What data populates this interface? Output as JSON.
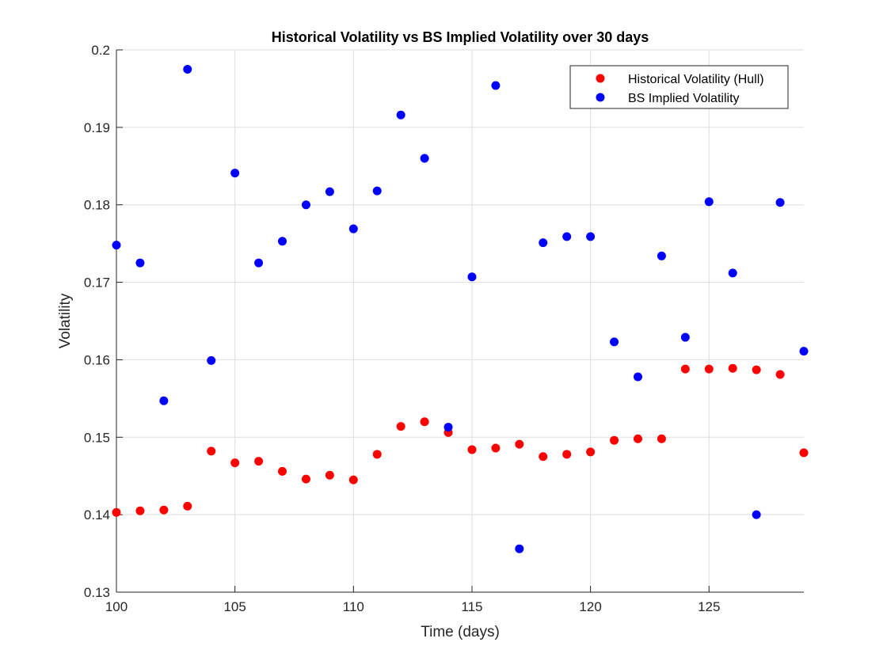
{
  "chart_data": {
    "type": "scatter",
    "title": "Historical Volatility vs BS Implied Volatility over 30 days",
    "xlabel": "Time (days)",
    "ylabel": "Volatility",
    "xlim": [
      100,
      129
    ],
    "ylim": [
      0.13,
      0.2
    ],
    "xticks": [
      100,
      105,
      110,
      115,
      120,
      125
    ],
    "yticks": [
      0.13,
      0.14,
      0.15,
      0.16,
      0.17,
      0.18,
      0.19,
      0.2
    ],
    "xtick_labels": [
      "100",
      "105",
      "110",
      "115",
      "120",
      "125"
    ],
    "ytick_labels": [
      "0.13",
      "0.14",
      "0.15",
      "0.16",
      "0.17",
      "0.18",
      "0.19",
      "0.2"
    ],
    "grid": true,
    "legend_position": "top-right",
    "x": [
      100,
      101,
      102,
      103,
      104,
      105,
      106,
      107,
      108,
      109,
      110,
      111,
      112,
      113,
      114,
      115,
      116,
      117,
      118,
      119,
      120,
      121,
      122,
      123,
      124,
      125,
      126,
      127,
      128,
      129
    ],
    "series": [
      {
        "name": "Historical Volatility (Hull)",
        "color": "#ff0000",
        "values": [
          0.1403,
          0.1405,
          0.1406,
          0.1411,
          0.1482,
          0.1467,
          0.1469,
          0.1456,
          0.1446,
          0.1451,
          0.1445,
          0.1478,
          0.1514,
          0.152,
          0.1506,
          0.1484,
          0.1486,
          0.1491,
          0.1475,
          0.1478,
          0.1481,
          0.1496,
          0.1498,
          0.1498,
          0.1588,
          0.1588,
          0.1589,
          0.1587,
          0.1581,
          0.148
        ]
      },
      {
        "name": "BS Implied Volatility",
        "color": "#0000ff",
        "values": [
          0.1748,
          0.1725,
          0.1547,
          0.1975,
          0.1599,
          0.1841,
          0.1725,
          0.1753,
          0.18,
          0.1817,
          0.1769,
          0.1818,
          0.1916,
          0.186,
          0.1513,
          0.1707,
          0.1954,
          0.1356,
          0.1751,
          0.1759,
          0.1759,
          0.1623,
          0.1578,
          0.1734,
          0.1629,
          0.1804,
          0.1712,
          0.14,
          0.1803,
          0.1611
        ]
      }
    ]
  }
}
